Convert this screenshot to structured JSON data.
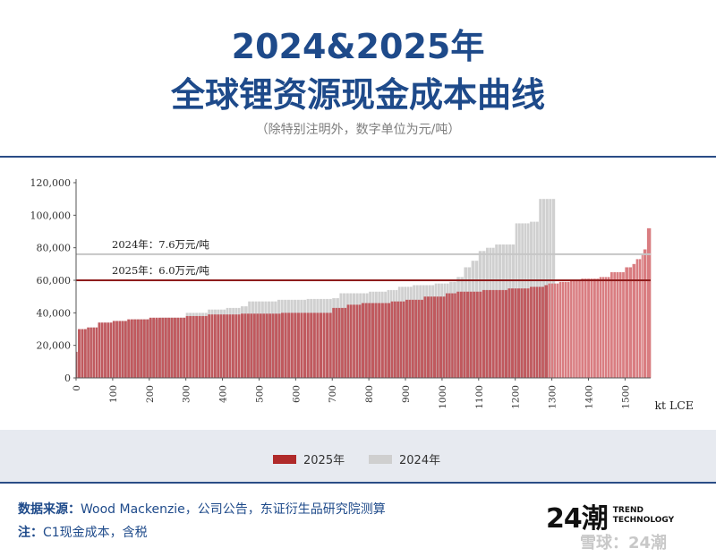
{
  "header": {
    "title_line1": "2024&2025年",
    "title_line2": "全球锂资源现金成本曲线",
    "subtitle": "（除特别注明外，数字单位为元/吨）"
  },
  "footer": {
    "source_label": "数据来源：",
    "source_text": "Wood Mackenzie，公司公告，东证衍生品研究院测算",
    "note_label": "注：",
    "note_text": "C1现金成本，含税"
  },
  "brand": {
    "mark": "24潮",
    "line1": "TREND",
    "line2": "TECHNOLOGY",
    "watermark": "雪球：24潮"
  },
  "colors": {
    "series_2025": "#c0595e",
    "series_2025_light": "#d97d81",
    "series_2024": "#d0d0d0",
    "line_2025": "#8e1c1c",
    "line_2024": "#c6c6c6",
    "title": "#1e4a8a"
  },
  "chart_data": {
    "type": "bar",
    "xlabel": "kt LCE",
    "ylabel": "",
    "xlim": [
      0,
      1570
    ],
    "ylim": [
      0,
      120000
    ],
    "x_ticks": [
      0,
      100,
      200,
      300,
      400,
      500,
      600,
      700,
      800,
      900,
      1000,
      1100,
      1200,
      1300,
      1400,
      1500
    ],
    "y_ticks": [
      0,
      20000,
      40000,
      60000,
      80000,
      100000,
      120000
    ],
    "y_tick_labels": [
      "0",
      "20,000",
      "40,000",
      "60,000",
      "80,000",
      "100,000",
      "120,000"
    ],
    "grid": false,
    "legend_position": "bottom",
    "legend": [
      "2025年",
      "2024年"
    ],
    "series": [
      {
        "name": "2024年",
        "steps": [
          [
            0,
            16000
          ],
          [
            5,
            30000
          ],
          [
            30,
            31000
          ],
          [
            60,
            34000
          ],
          [
            100,
            35000
          ],
          [
            150,
            36000
          ],
          [
            230,
            37000
          ],
          [
            300,
            40000
          ],
          [
            360,
            42000
          ],
          [
            410,
            43000
          ],
          [
            450,
            44000
          ],
          [
            470,
            47000
          ],
          [
            550,
            48000
          ],
          [
            630,
            48500
          ],
          [
            700,
            49000
          ],
          [
            720,
            52000
          ],
          [
            800,
            53000
          ],
          [
            850,
            54000
          ],
          [
            880,
            56000
          ],
          [
            920,
            57000
          ],
          [
            980,
            58000
          ],
          [
            1020,
            59000
          ],
          [
            1040,
            62000
          ],
          [
            1060,
            68000
          ],
          [
            1080,
            72000
          ],
          [
            1100,
            78000
          ],
          [
            1120,
            80000
          ],
          [
            1145,
            82000
          ],
          [
            1200,
            95000
          ],
          [
            1240,
            96000
          ],
          [
            1265,
            110000
          ],
          [
            1310,
            0
          ]
        ]
      },
      {
        "name": "2025年",
        "steps": [
          [
            0,
            16000
          ],
          [
            5,
            30000
          ],
          [
            30,
            31000
          ],
          [
            60,
            34000
          ],
          [
            100,
            35000
          ],
          [
            140,
            36000
          ],
          [
            200,
            37000
          ],
          [
            300,
            38000
          ],
          [
            360,
            39000
          ],
          [
            450,
            39500
          ],
          [
            560,
            40000
          ],
          [
            700,
            43000
          ],
          [
            740,
            45000
          ],
          [
            780,
            46000
          ],
          [
            860,
            47000
          ],
          [
            900,
            48000
          ],
          [
            950,
            50000
          ],
          [
            1010,
            52000
          ],
          [
            1040,
            53000
          ],
          [
            1110,
            54000
          ],
          [
            1180,
            55000
          ],
          [
            1240,
            56000
          ],
          [
            1280,
            57000
          ],
          [
            1290,
            58000
          ],
          [
            1320,
            59000
          ],
          [
            1350,
            60000
          ],
          [
            1380,
            61000
          ],
          [
            1430,
            62000
          ],
          [
            1460,
            65000
          ],
          [
            1500,
            68000
          ],
          [
            1520,
            70000
          ],
          [
            1530,
            73000
          ],
          [
            1545,
            76000
          ],
          [
            1550,
            79000
          ],
          [
            1560,
            92000
          ],
          [
            1572,
            0
          ]
        ]
      }
    ],
    "reference_lines": [
      {
        "label": "2024年：7.6万元/吨",
        "value": 76000,
        "series": "2024年"
      },
      {
        "label": "2025年：6.0万元/吨",
        "value": 60000,
        "series": "2025年"
      }
    ]
  }
}
